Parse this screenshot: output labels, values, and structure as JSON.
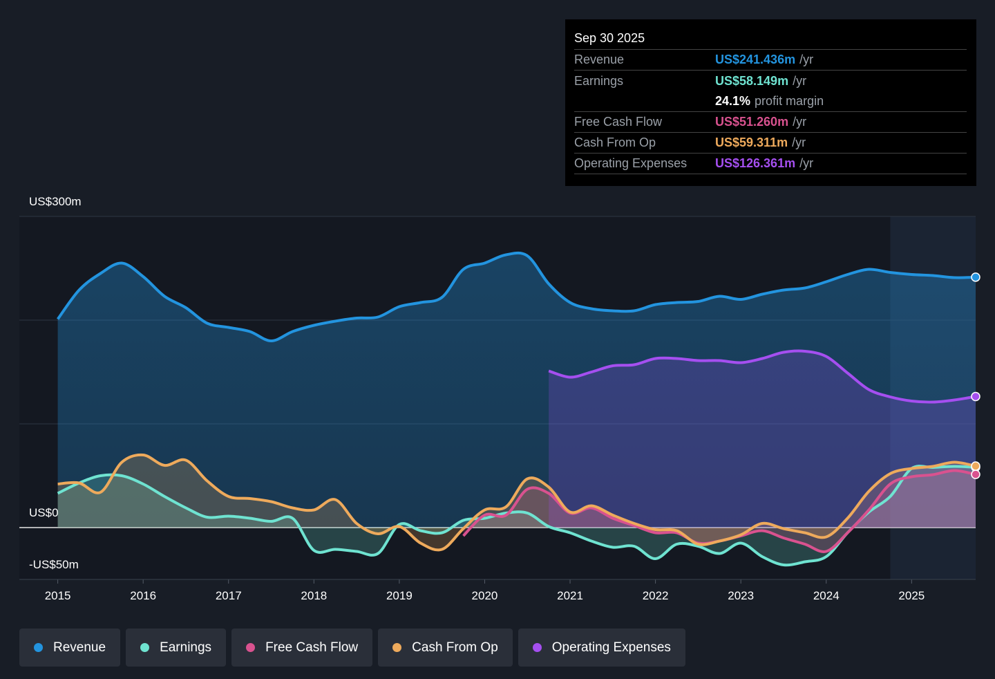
{
  "chart_data": {
    "type": "line",
    "x": [
      2015,
      2015.25,
      2015.5,
      2015.75,
      2016,
      2016.25,
      2016.5,
      2016.75,
      2017,
      2017.25,
      2017.5,
      2017.75,
      2018,
      2018.25,
      2018.5,
      2018.75,
      2019,
      2019.25,
      2019.5,
      2019.75,
      2020,
      2020.25,
      2020.5,
      2020.75,
      2021,
      2021.25,
      2021.5,
      2021.75,
      2022,
      2022.25,
      2022.5,
      2022.75,
      2023,
      2023.25,
      2023.5,
      2023.75,
      2024,
      2024.25,
      2024.5,
      2024.75,
      2025,
      2025.25,
      2025.5,
      2025.75
    ],
    "series": [
      {
        "name": "Revenue",
        "color": "#2394df",
        "values": [
          201,
          229,
          245,
          255,
          242,
          223,
          212,
          197,
          193,
          189,
          180,
          189,
          195,
          199,
          202,
          203,
          213,
          217,
          222,
          249,
          255,
          263,
          262,
          235,
          217,
          211,
          209,
          209,
          215,
          217,
          218,
          223,
          220,
          225,
          229,
          231,
          237,
          244,
          249,
          246,
          244,
          243,
          241,
          241.436
        ]
      },
      {
        "name": "Earnings",
        "color": "#6fe3d1",
        "values": [
          33,
          43,
          50,
          50,
          42,
          30,
          19,
          10,
          11,
          9,
          6,
          9,
          -22,
          -21,
          -23,
          -25,
          3,
          -3,
          -5,
          7,
          9,
          14,
          14,
          1,
          -5,
          -13,
          -19,
          -18,
          -30,
          -16,
          -18,
          -25,
          -15,
          -28,
          -36,
          -33,
          -28,
          -5,
          15,
          30,
          57,
          58,
          59,
          58.149
        ]
      },
      {
        "name": "Free Cash Flow",
        "color": "#d9528f",
        "values": [
          null,
          null,
          null,
          null,
          null,
          null,
          null,
          null,
          null,
          null,
          null,
          null,
          null,
          null,
          null,
          null,
          null,
          null,
          null,
          -8,
          12,
          12,
          37,
          33,
          14,
          19,
          9,
          2,
          -5,
          -5,
          -15,
          -13,
          -8,
          -3,
          -10,
          -16,
          -23,
          -5,
          17,
          42,
          49,
          51,
          55,
          51.26
        ]
      },
      {
        "name": "Cash From Op",
        "color": "#eeaa5c",
        "values": [
          42,
          43,
          34,
          63,
          70,
          60,
          65,
          45,
          30,
          28,
          25,
          19,
          17,
          27,
          4,
          -6,
          1,
          -15,
          -21,
          -1,
          17,
          20,
          47,
          39,
          15,
          21,
          12,
          4,
          -2,
          -3,
          -16,
          -13,
          -7,
          4,
          -1,
          -5,
          -9,
          9,
          35,
          52,
          57,
          59,
          63,
          59.311
        ]
      },
      {
        "name": "Operating Expenses",
        "color": "#a54ff0",
        "values": [
          null,
          null,
          null,
          null,
          null,
          null,
          null,
          null,
          null,
          null,
          null,
          null,
          null,
          null,
          null,
          null,
          null,
          null,
          null,
          null,
          null,
          null,
          null,
          151,
          145,
          150,
          156,
          157,
          163,
          163,
          161,
          161,
          159,
          163,
          169,
          170,
          165,
          149,
          133,
          126,
          122,
          121,
          123,
          126.361
        ]
      }
    ],
    "xlim": [
      2014.55,
      2025.75
    ],
    "xticks": [
      2015,
      2016,
      2017,
      2018,
      2019,
      2020,
      2021,
      2022,
      2023,
      2024,
      2025
    ],
    "ylim": [
      -50,
      300
    ],
    "yticks": [
      {
        "value": 300,
        "label": "US$300m"
      },
      {
        "value": 200,
        "label": null
      },
      {
        "value": 100,
        "label": null
      },
      {
        "value": 0,
        "label": "US$0"
      },
      {
        "value": -50,
        "label": "-US$50m"
      }
    ],
    "grid": true,
    "shaded_region": [
      2024.75,
      2025.75
    ]
  },
  "tooltip": {
    "date": "Sep 30 2025",
    "rows": [
      {
        "label": "Revenue",
        "value": "US$241.436m",
        "unit": "/yr"
      },
      {
        "label": "Earnings",
        "value": "US$58.149m",
        "unit": "/yr"
      },
      {
        "label": "Free Cash Flow",
        "value": "US$51.260m",
        "unit": "/yr"
      },
      {
        "label": "Cash From Op",
        "value": "US$59.311m",
        "unit": "/yr"
      },
      {
        "label": "Operating Expenses",
        "value": "US$126.361m",
        "unit": "/yr"
      }
    ],
    "margin": {
      "value": "24.1%",
      "label": "profit margin"
    }
  }
}
